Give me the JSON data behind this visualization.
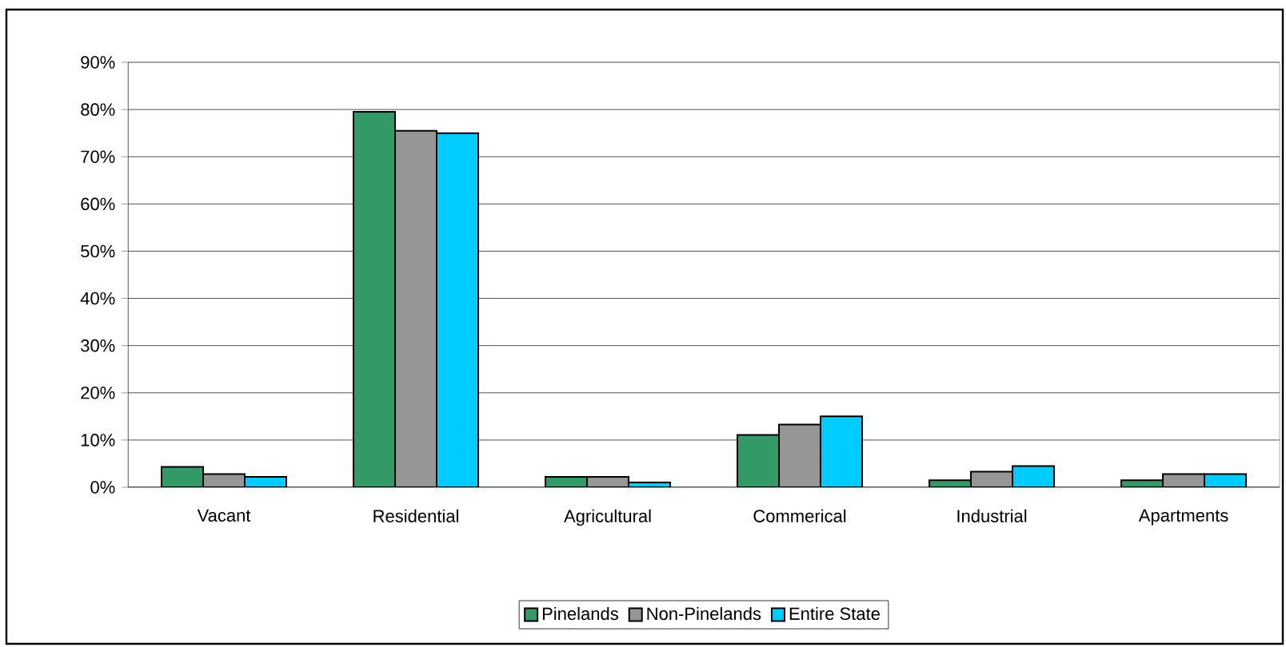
{
  "chart_data": {
    "type": "bar",
    "categories": [
      "Vacant",
      "Residential",
      "Agricultural",
      "Commerical",
      "Industrial",
      "Apartments"
    ],
    "series": [
      {
        "name": "Pinelands",
        "color": "#339966",
        "values": [
          4.3,
          79.5,
          2.2,
          11.1,
          1.5,
          1.5
        ]
      },
      {
        "name": "Non-Pinelands",
        "color": "#969696",
        "values": [
          2.8,
          75.5,
          2.2,
          13.3,
          3.3,
          2.8
        ]
      },
      {
        "name": "Entire State",
        "color": "#00ccff",
        "values": [
          2.2,
          75.0,
          1.0,
          15.0,
          4.5,
          2.8
        ]
      }
    ],
    "ylim": [
      0,
      90
    ],
    "yticks": [
      {
        "value": 0,
        "label": "0%"
      },
      {
        "value": 10,
        "label": "10%"
      },
      {
        "value": 20,
        "label": "20%"
      },
      {
        "value": 30,
        "label": "30%"
      },
      {
        "value": 40,
        "label": "40%"
      },
      {
        "value": 50,
        "label": "50%"
      },
      {
        "value": 60,
        "label": "60%"
      },
      {
        "value": 70,
        "label": "70%"
      },
      {
        "value": 80,
        "label": "80%"
      },
      {
        "value": 90,
        "label": "90%"
      }
    ],
    "grid": "y",
    "legend": "bottom"
  }
}
